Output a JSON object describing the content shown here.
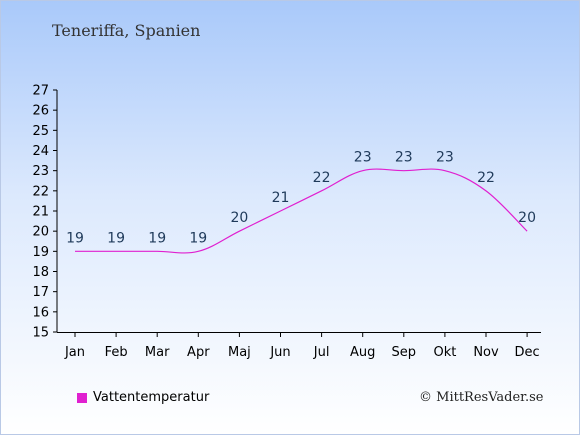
{
  "page": {
    "title": "Teneriffa, Spanien"
  },
  "legend": {
    "label": "Vattentemperatur"
  },
  "copyright": "© MittResVader.se",
  "colors": {
    "series": "#e020d0",
    "axis": "#000000"
  },
  "chart_data": {
    "type": "line",
    "title": "Teneriffa, Spanien",
    "categories": [
      "Jan",
      "Feb",
      "Mar",
      "Apr",
      "Maj",
      "Jun",
      "Jul",
      "Aug",
      "Sep",
      "Okt",
      "Nov",
      "Dec"
    ],
    "series": [
      {
        "name": "Vattentemperatur",
        "values": [
          19,
          19,
          19,
          19,
          20,
          21,
          22,
          23,
          23,
          23,
          22,
          20
        ]
      }
    ],
    "ylim": [
      15,
      27
    ],
    "yticks": [
      15,
      16,
      17,
      18,
      19,
      20,
      21,
      22,
      23,
      24,
      25,
      26,
      27
    ],
    "grid": false,
    "legend_position": "bottom-left"
  }
}
